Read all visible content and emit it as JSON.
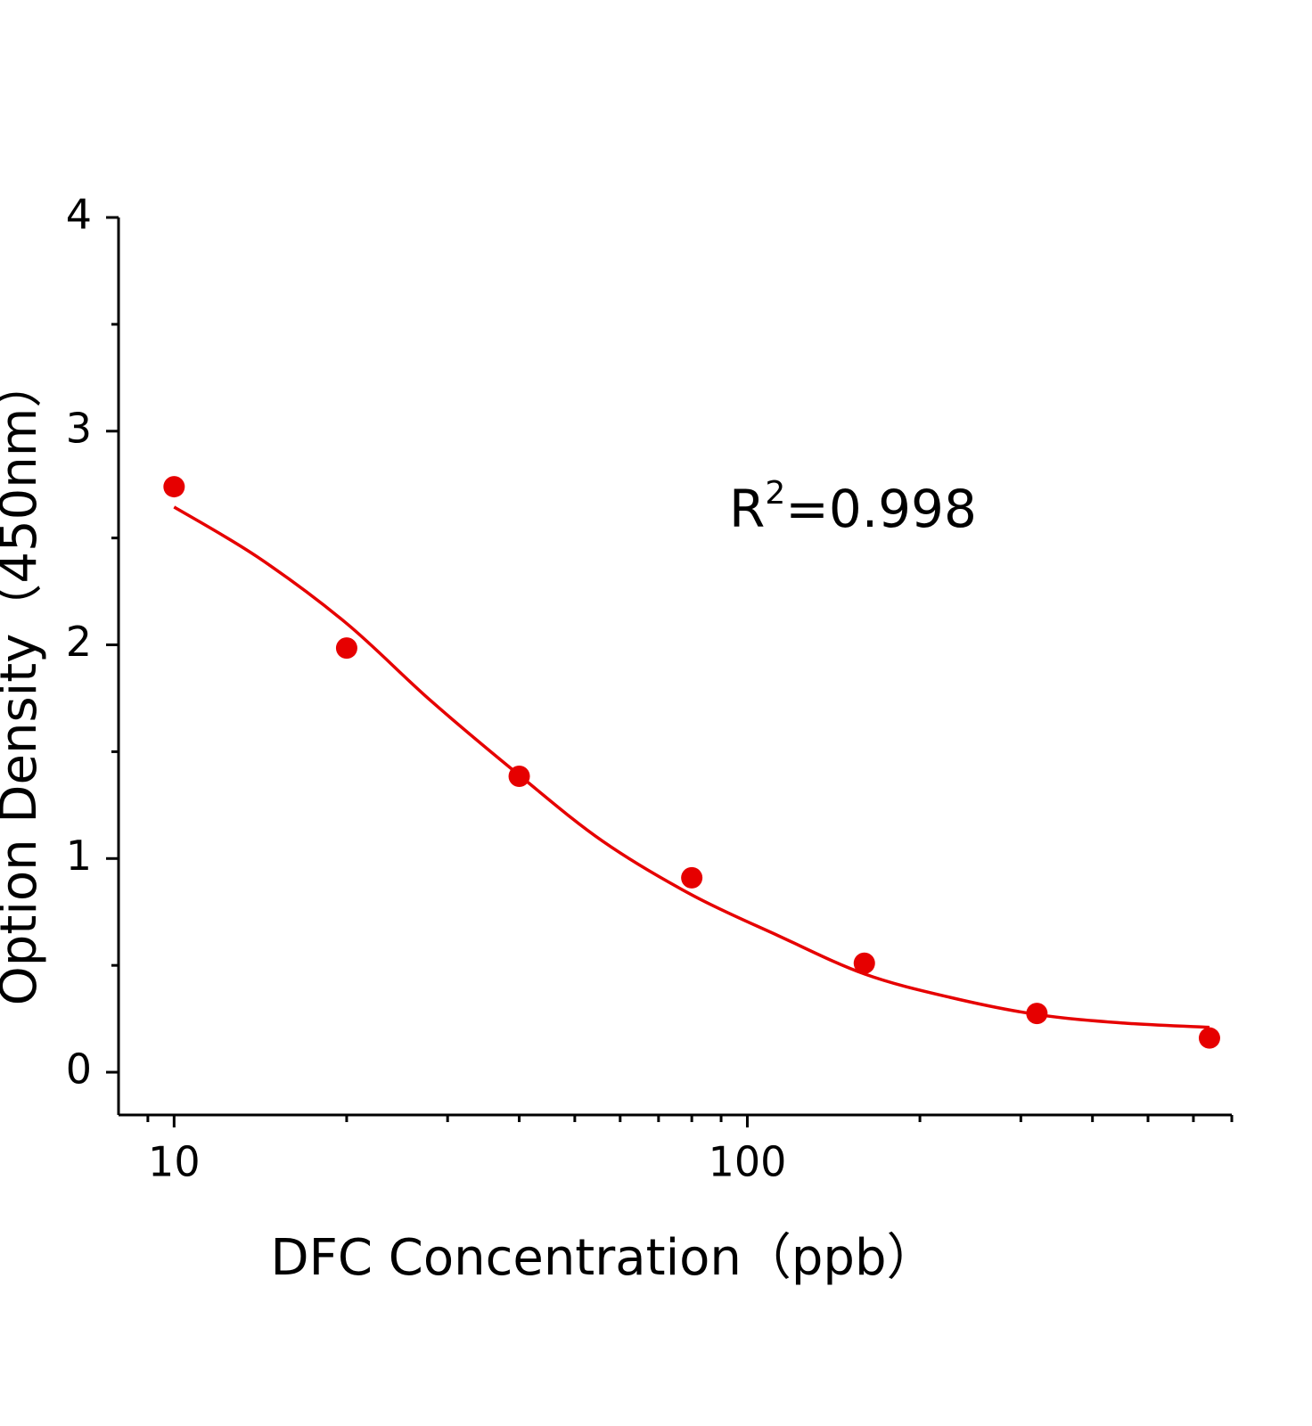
{
  "chart_data": {
    "type": "scatter",
    "x_label": "DFC Concentration（ppb）",
    "y_label": "Option Density（450nm）",
    "annotation": [
      "R",
      "2",
      "=0.998"
    ],
    "xscale": "log",
    "xlim": [
      8,
      700
    ],
    "xticks": [
      10,
      100
    ],
    "xminorticks": [
      9,
      20,
      30,
      40,
      50,
      60,
      70,
      80,
      90,
      200,
      300,
      400,
      500,
      600,
      700
    ],
    "ylim": [
      -0.2,
      4
    ],
    "yticks": [
      0,
      1,
      2,
      3,
      4
    ],
    "yminorticks": [
      0.5,
      1.5,
      2.5,
      3.5
    ],
    "series": [
      {
        "type": "scatter",
        "color": "#e60000",
        "x": [
          10,
          20,
          40,
          80,
          160,
          320,
          640
        ],
        "values": [
          2.74,
          1.985,
          1.385,
          0.91,
          0.51,
          0.275,
          0.16
        ]
      },
      {
        "type": "line",
        "color": "#e60000",
        "x": [
          10,
          14,
          20,
          28,
          40,
          56,
          80,
          113,
          160,
          226,
          320,
          453,
          640
        ],
        "values": [
          2.645,
          2.41,
          2.1,
          1.74,
          1.39,
          1.08,
          0.83,
          0.64,
          0.46,
          0.35,
          0.27,
          0.23,
          0.21
        ]
      }
    ]
  }
}
